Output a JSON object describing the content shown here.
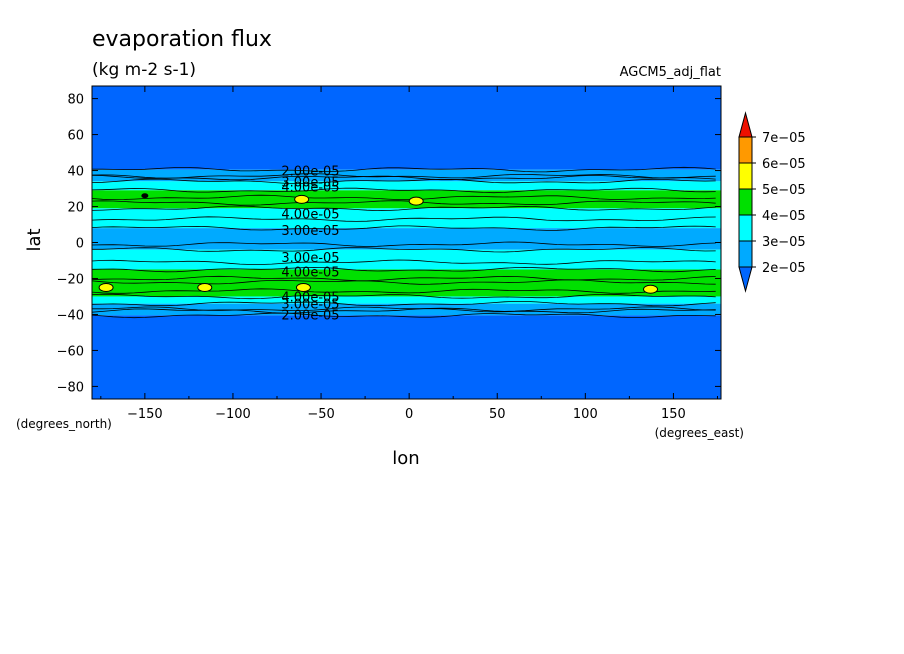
{
  "chart_data": {
    "type": "heatmap",
    "title": "evaporation flux",
    "subtitle": "(kg m-2 s-1)",
    "dataset": "AGCM5_adj_flat",
    "xlabel": "lon",
    "ylabel": "lat",
    "x_unit": "(degrees_east)",
    "y_unit": "(degrees_north)",
    "xlim": [
      -180,
      177
    ],
    "ylim": [
      -87,
      87
    ],
    "x_ticks": [
      -150,
      -100,
      -50,
      0,
      50,
      100,
      150
    ],
    "y_ticks": [
      80,
      60,
      40,
      20,
      0,
      -20,
      -40,
      -60,
      -80
    ],
    "levels": [
      2e-05,
      3e-05,
      4e-05,
      5e-05,
      6e-05,
      7e-05
    ],
    "level_labels": [
      "2e-05",
      "3e-05",
      "4e-05",
      "5e-05",
      "6e-05",
      "7e-05"
    ],
    "fill_colors": {
      "below": "#0066ff",
      "2e-05_3e-05": "#00aaff",
      "3e-05_4e-05": "#00ffff",
      "4e-05_5e-05": "#00e000",
      "5e-05_6e-05": "#ffff00",
      "6e-05_7e-05": "#ff9900",
      "above": "#ee1100"
    },
    "latitude_bands": [
      {
        "lat": [
          40.5,
          87
        ],
        "value": "below 2e-05"
      },
      {
        "lat": [
          34,
          40.5
        ],
        "value": "2e-05 to 3e-05"
      },
      {
        "lat": [
          29,
          34
        ],
        "value": "3e-05 to 4e-05"
      },
      {
        "lat": [
          19,
          29
        ],
        "value": "4e-05 to 5e-05"
      },
      {
        "lat": [
          8,
          19
        ],
        "value": "3e-05 to 4e-05"
      },
      {
        "lat": [
          -4,
          8
        ],
        "value": "2e-05 to 3e-05"
      },
      {
        "lat": [
          -15,
          -4
        ],
        "value": "3e-05 to 4e-05"
      },
      {
        "lat": [
          -30,
          -15
        ],
        "value": "4e-05 to 5e-05"
      },
      {
        "lat": [
          -34,
          -30
        ],
        "value": "3e-05 to 4e-05"
      },
      {
        "lat": [
          -40.5,
          -34
        ],
        "value": "2e-05 to 3e-05"
      },
      {
        "lat": [
          -87,
          -40.5
        ],
        "value": "below 2e-05"
      }
    ],
    "maxima_spots": [
      {
        "lon": -172,
        "lat": -25
      },
      {
        "lon": -116,
        "lat": -25
      },
      {
        "lon": -60,
        "lat": -25
      },
      {
        "lon": 137,
        "lat": -26
      },
      {
        "lon": -61,
        "lat": 24
      },
      {
        "lon": 4,
        "lat": 23
      },
      {
        "lon": -150,
        "lat": 26
      }
    ],
    "contour_labels": [
      {
        "text": "2.00e-05",
        "lon": -56,
        "lat": 40
      },
      {
        "text": "3.00e-05",
        "lon": -56,
        "lat": 34
      },
      {
        "text": "4.00e-05",
        "lon": -56,
        "lat": 31
      },
      {
        "text": "4.00e-05",
        "lon": -56,
        "lat": 16
      },
      {
        "text": "3.00e-05",
        "lon": -56,
        "lat": 7
      },
      {
        "text": "3.00e-05",
        "lon": -56,
        "lat": -8
      },
      {
        "text": "4.00e-05",
        "lon": -56,
        "lat": -16
      },
      {
        "text": "4.00e-05",
        "lon": -56,
        "lat": -30
      },
      {
        "text": "3.00e-05",
        "lon": -56,
        "lat": -34
      },
      {
        "text": "2.00e-05",
        "lon": -56,
        "lat": -40
      }
    ]
  }
}
